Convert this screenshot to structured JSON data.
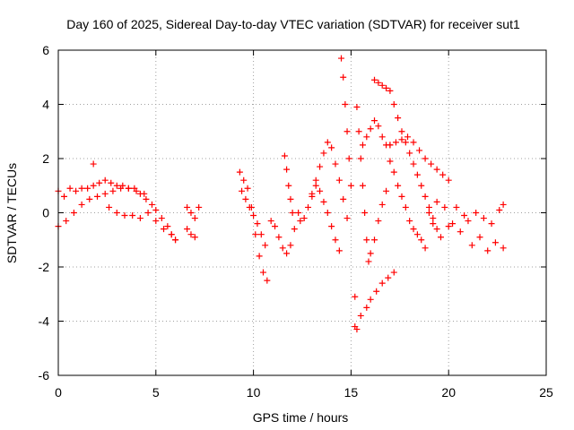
{
  "chart_data": {
    "type": "scatter",
    "title": "Day 160 of 2025, Sidereal Day-to-day VTEC variation (SDTVAR) for receiver sut1",
    "xlabel": "GPS time / hours",
    "ylabel": "SDTVAR / TECUs",
    "xlim": [
      0,
      25
    ],
    "ylim": [
      -6,
      6
    ],
    "xticks": [
      0,
      5,
      10,
      15,
      20,
      25
    ],
    "yticks": [
      -6,
      -4,
      -2,
      0,
      2,
      4,
      6
    ],
    "grid": true,
    "marker": "+",
    "color": "#ff0000",
    "series": [
      {
        "name": "sut1",
        "x": [
          0.0,
          0.3,
          0.6,
          0.9,
          1.2,
          1.5,
          1.8,
          2.1,
          2.4,
          2.7,
          3.0,
          3.3,
          3.6,
          3.9,
          4.2,
          4.5,
          4.8,
          5.0,
          5.3,
          5.6,
          5.8,
          6.0,
          0.0,
          0.4,
          0.8,
          1.2,
          1.6,
          2.0,
          2.4,
          2.8,
          3.2,
          3.6,
          4.0,
          4.4,
          2.6,
          3.0,
          3.4,
          3.8,
          4.2,
          4.6,
          5.0,
          5.4,
          5.8,
          6.0,
          1.8,
          6.6,
          6.8,
          7.0,
          7.2,
          6.6,
          6.8,
          7.0,
          9.3,
          9.5,
          9.7,
          9.9,
          10.1,
          10.3,
          10.5,
          10.7,
          10.9,
          11.1,
          11.3,
          11.5,
          11.7,
          11.9,
          12.1,
          12.3,
          9.4,
          9.6,
          9.8,
          10.0,
          10.2,
          10.4,
          10.6,
          11.6,
          11.7,
          11.8,
          11.9,
          12.0,
          12.4,
          12.6,
          12.8,
          13.0,
          13.2,
          13.4,
          13.6,
          13.8,
          14.0,
          14.2,
          14.4,
          14.6,
          14.8,
          13.0,
          13.2,
          13.4,
          13.6,
          13.8,
          14.0,
          14.2,
          14.4,
          14.5,
          14.6,
          14.7,
          14.8,
          14.9,
          15.0,
          15.3,
          15.4,
          15.5,
          15.6,
          15.7,
          15.8,
          15.9,
          16.0,
          16.2,
          16.4,
          16.6,
          16.8,
          15.2,
          15.5,
          15.8,
          16.0,
          16.3,
          16.6,
          16.9,
          17.2,
          15.6,
          15.8,
          16.0,
          16.2,
          16.4,
          16.6,
          16.8,
          17.0,
          16.2,
          16.4,
          16.6,
          16.8,
          17.0,
          17.2,
          17.4,
          17.6,
          17.8,
          18.0,
          18.2,
          18.4,
          18.6,
          18.8,
          19.0,
          19.2,
          19.4,
          17.0,
          17.3,
          17.6,
          17.9,
          18.2,
          18.5,
          18.8,
          19.1,
          19.4,
          19.7,
          20.0,
          17.0,
          17.2,
          17.4,
          17.6,
          17.8,
          18.0,
          18.2,
          18.4,
          18.6,
          18.8,
          19.0,
          19.4,
          19.8,
          20.2,
          20.6,
          21.0,
          21.4,
          21.8,
          22.2,
          22.6,
          22.8,
          19.2,
          19.6,
          20.0,
          20.4,
          20.8,
          21.2,
          21.6,
          22.0,
          22.4,
          22.8,
          15.2,
          15.3
        ],
        "y": [
          0.8,
          0.6,
          0.9,
          0.8,
          0.9,
          0.9,
          1.0,
          1.1,
          1.2,
          1.1,
          1.0,
          1.0,
          0.9,
          0.9,
          0.7,
          0.5,
          0.3,
          0.1,
          -0.2,
          -0.5,
          -0.8,
          -1.0,
          -0.5,
          -0.3,
          0.0,
          0.3,
          0.5,
          0.6,
          0.7,
          0.8,
          0.9,
          0.9,
          0.8,
          0.7,
          0.2,
          0.0,
          -0.1,
          -0.1,
          -0.2,
          0.0,
          -0.3,
          -0.6,
          -0.8,
          -1.0,
          1.8,
          0.2,
          0.0,
          -0.2,
          0.2,
          -0.6,
          -0.8,
          -0.9,
          1.5,
          1.2,
          0.9,
          0.2,
          -0.8,
          -1.6,
          -2.2,
          -2.5,
          -0.3,
          -0.5,
          -0.9,
          -1.3,
          -1.5,
          -1.2,
          -0.6,
          0.0,
          0.8,
          0.5,
          0.2,
          -0.1,
          -0.4,
          -0.8,
          -1.2,
          2.1,
          1.6,
          1.0,
          0.5,
          0.0,
          -0.3,
          -0.2,
          0.2,
          0.7,
          1.2,
          1.7,
          2.2,
          2.6,
          2.4,
          1.8,
          1.2,
          0.5,
          -0.2,
          0.6,
          1.0,
          0.8,
          0.4,
          0.0,
          -0.5,
          -1.0,
          -1.4,
          5.7,
          5.0,
          4.0,
          3.0,
          2.0,
          1.0,
          3.9,
          3.0,
          2.0,
          1.0,
          0.0,
          -1.0,
          -1.8,
          -1.5,
          -1.0,
          -0.3,
          0.3,
          0.8,
          -4.2,
          -3.8,
          -3.5,
          -3.2,
          -2.9,
          -2.6,
          -2.4,
          -2.2,
          2.5,
          2.8,
          3.1,
          3.4,
          3.2,
          2.8,
          2.5,
          2.5,
          4.9,
          4.8,
          4.7,
          4.6,
          4.5,
          4.0,
          3.5,
          3.0,
          2.6,
          2.2,
          1.8,
          1.4,
          1.0,
          0.6,
          0.2,
          -0.2,
          -0.6,
          2.5,
          2.6,
          2.7,
          2.8,
          2.6,
          2.3,
          2.0,
          1.8,
          1.6,
          1.4,
          1.2,
          1.9,
          1.5,
          1.0,
          0.6,
          0.2,
          -0.3,
          -0.6,
          -0.8,
          -1.0,
          -1.3,
          0.0,
          0.4,
          0.2,
          -0.4,
          -0.7,
          -0.3,
          0.0,
          -0.2,
          -0.4,
          0.1,
          0.3,
          -0.4,
          -0.9,
          -0.5,
          0.2,
          -0.1,
          -1.2,
          -0.9,
          -1.4,
          -1.1,
          -1.3,
          -3.1,
          -4.3
        ]
      }
    ]
  }
}
